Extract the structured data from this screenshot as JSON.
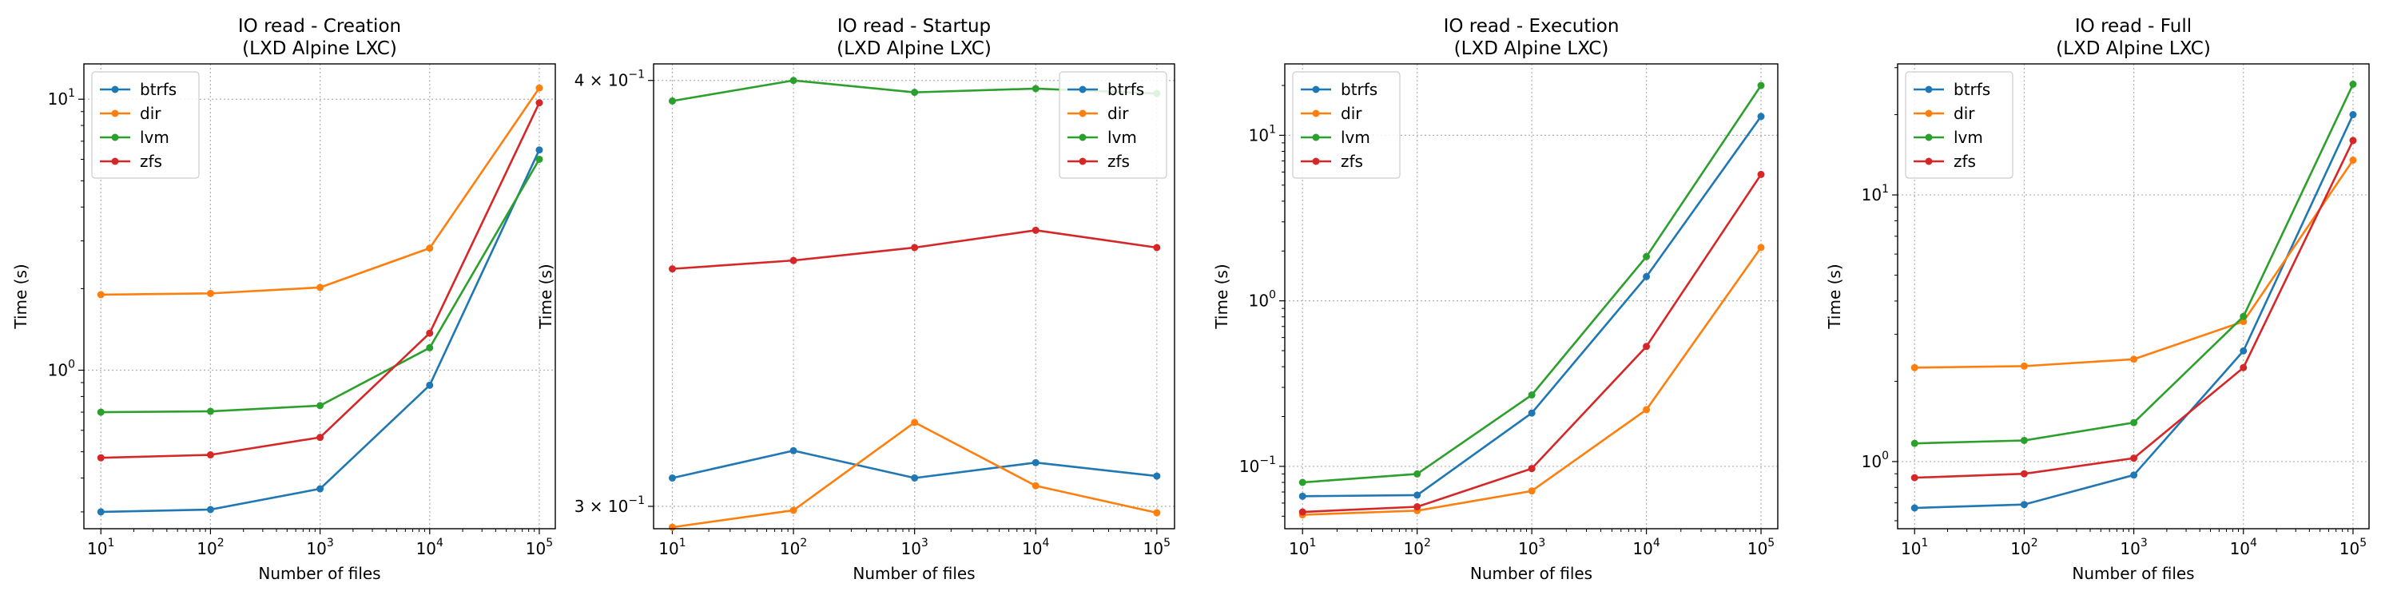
{
  "colors": {
    "btrfs": "#1f77b4",
    "dir": "#ff7f0e",
    "lvm": "#2ca02c",
    "zfs": "#d62728"
  },
  "chart_data": [
    {
      "type": "line",
      "title": "IO read - Creation",
      "subtitle": "(LXD Alpine LXC)",
      "xlabel": "Number of files",
      "ylabel": "Time (s)",
      "xscale": "log",
      "yscale": "log",
      "x": [
        10,
        100,
        1000,
        10000,
        100000
      ],
      "xlim": [
        7,
        140000
      ],
      "ylim": [
        0.26,
        13.5
      ],
      "yticks": [
        {
          "value": 1,
          "base": "10",
          "exp": "0"
        },
        {
          "value": 10,
          "base": "10",
          "exp": "1"
        }
      ],
      "grid": true,
      "legend": "top-left",
      "series": [
        {
          "name": "btrfs",
          "values": [
            0.3,
            0.306,
            0.365,
            0.88,
            6.5
          ]
        },
        {
          "name": "dir",
          "values": [
            1.9,
            1.92,
            2.02,
            2.82,
            11.0
          ]
        },
        {
          "name": "lvm",
          "values": [
            0.7,
            0.705,
            0.74,
            1.21,
            6.0
          ]
        },
        {
          "name": "zfs",
          "values": [
            0.475,
            0.487,
            0.565,
            1.37,
            9.7
          ]
        }
      ]
    },
    {
      "type": "line",
      "title": "IO read - Startup",
      "subtitle": "(LXD Alpine LXC)",
      "xlabel": "Number of files",
      "ylabel": "Time (s)",
      "xscale": "log",
      "yscale": "log",
      "x": [
        10,
        100,
        1000,
        10000,
        100000
      ],
      "xlim": [
        7,
        140000
      ],
      "ylim": [
        0.2955,
        0.4045
      ],
      "yticks": [
        {
          "value": 0.3,
          "base": "3 × 10",
          "exp": "−1"
        },
        {
          "value": 0.4,
          "base": "4 × 10",
          "exp": "−1"
        }
      ],
      "grid": true,
      "legend": "top-right",
      "series": [
        {
          "name": "btrfs",
          "values": [
            0.3058,
            0.3115,
            0.3058,
            0.309,
            0.3062
          ]
        },
        {
          "name": "dir",
          "values": [
            0.2958,
            0.2992,
            0.3175,
            0.3042,
            0.2987
          ]
        },
        {
          "name": "lvm",
          "values": [
            0.3945,
            0.4,
            0.3968,
            0.3978,
            0.3965
          ]
        },
        {
          "name": "zfs",
          "values": [
            0.3522,
            0.3542,
            0.3573,
            0.3615,
            0.3573
          ]
        }
      ]
    },
    {
      "type": "line",
      "title": "IO read - Execution",
      "subtitle": "(LXD Alpine LXC)",
      "xlabel": "Number of files",
      "ylabel": "Time (s)",
      "xscale": "log",
      "yscale": "log",
      "x": [
        10,
        100,
        1000,
        10000,
        100000
      ],
      "xlim": [
        7,
        140000
      ],
      "ylim": [
        0.042,
        27
      ],
      "yticks": [
        {
          "value": 0.1,
          "base": "10",
          "exp": "−1"
        },
        {
          "value": 1,
          "base": "10",
          "exp": "0"
        },
        {
          "value": 10,
          "base": "10",
          "exp": "1"
        }
      ],
      "grid": true,
      "legend": "top-left",
      "series": [
        {
          "name": "btrfs",
          "values": [
            0.066,
            0.067,
            0.21,
            1.4,
            13.0
          ]
        },
        {
          "name": "dir",
          "values": [
            0.051,
            0.054,
            0.071,
            0.22,
            2.1
          ]
        },
        {
          "name": "lvm",
          "values": [
            0.08,
            0.09,
            0.27,
            1.85,
            20.0
          ]
        },
        {
          "name": "zfs",
          "values": [
            0.053,
            0.057,
            0.097,
            0.53,
            5.8
          ]
        }
      ]
    },
    {
      "type": "line",
      "title": "IO read - Full",
      "subtitle": "(LXD Alpine LXC)",
      "xlabel": "Number of files",
      "ylabel": "Time (s)",
      "xscale": "log",
      "yscale": "log",
      "x": [
        10,
        100,
        1000,
        10000,
        100000
      ],
      "xlim": [
        7,
        140000
      ],
      "ylim": [
        0.56,
        31
      ],
      "yticks": [
        {
          "value": 1,
          "base": "10",
          "exp": "0"
        },
        {
          "value": 10,
          "base": "10",
          "exp": "1"
        }
      ],
      "grid": true,
      "legend": "top-left",
      "series": [
        {
          "name": "btrfs",
          "values": [
            0.67,
            0.69,
            0.89,
            2.6,
            20.0
          ]
        },
        {
          "name": "dir",
          "values": [
            2.25,
            2.28,
            2.42,
            3.35,
            13.5
          ]
        },
        {
          "name": "lvm",
          "values": [
            1.17,
            1.2,
            1.4,
            3.5,
            26.0
          ]
        },
        {
          "name": "zfs",
          "values": [
            0.87,
            0.9,
            1.03,
            2.25,
            16.0
          ]
        }
      ]
    }
  ]
}
